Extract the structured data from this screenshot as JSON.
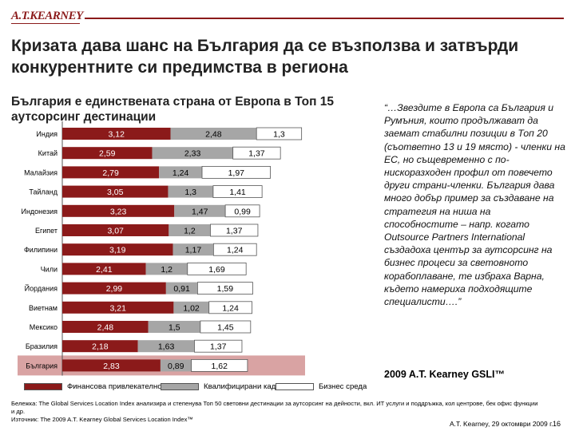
{
  "header": {
    "logo": "A.T.KEARNEY",
    "title": "Кризата дава шанс на България да се възползва и затвърди конкурентните си предимства в региона",
    "subtitle": "България е единствената страна от Европа в Топ 15 аутсорсинг дестинации"
  },
  "quote": {
    "text": "“…Звездите в Европа са България и Румъния, които продължават да заемат стабилни позиции в Топ 20 (съответно 13 и 19 място) - членки на ЕС, но същевременно с по-нискоразходен профил от повечето други страни-членки. България дава много добър пример за създаване на стратегия на ниша на способностите – напр. когато Outsource Partners International създадоха център за аутсорсинг на бизнес процеси за световното корабоплаване, те избраха Варна, където намериха подходящите специалисти….”",
    "source": "2009 A.T. Kearney GSLI™"
  },
  "chart_data": {
    "type": "bar",
    "stacked": true,
    "orientation": "horizontal",
    "categories": [
      "Индия",
      "Китай",
      "Малайзия",
      "Тайланд",
      "Индонезия",
      "Египет",
      "Филипини",
      "Чили",
      "Йордания",
      "Виетнам",
      "Мексико",
      "Бразилия",
      "България"
    ],
    "series": [
      {
        "name": "Финансова привлекателност",
        "color": "#8b1a1a",
        "values": [
          3.12,
          2.59,
          2.79,
          3.05,
          3.23,
          3.07,
          3.19,
          2.41,
          2.99,
          3.21,
          2.48,
          2.18,
          2.83
        ]
      },
      {
        "name": "Квалифицирани кадри",
        "color": "#a6a6a6",
        "values": [
          2.48,
          2.33,
          1.24,
          1.3,
          1.47,
          1.2,
          1.17,
          1.2,
          0.91,
          1.02,
          1.5,
          1.63,
          0.89
        ]
      },
      {
        "name": "Бизнес среда",
        "color": "#ffffff",
        "values": [
          1.3,
          1.37,
          1.97,
          1.41,
          0.99,
          1.37,
          1.24,
          1.69,
          1.59,
          1.24,
          1.45,
          1.37,
          1.62
        ]
      }
    ],
    "labels": [
      [
        "3,12",
        "2,48",
        "1,3"
      ],
      [
        "2,59",
        "2,33",
        "1,37"
      ],
      [
        "2,79",
        "1,24",
        "1,97"
      ],
      [
        "3,05",
        "1,3",
        "1,41"
      ],
      [
        "3,23",
        "1,47",
        "0,99"
      ],
      [
        "3,07",
        "1,2",
        "1,37"
      ],
      [
        "3,19",
        "1,17",
        "1,24"
      ],
      [
        "2,41",
        "1,2",
        "1,69"
      ],
      [
        "2,99",
        "0,91",
        "1,59"
      ],
      [
        "3,21",
        "1,02",
        "1,24"
      ],
      [
        "2,48",
        "1,5",
        "1,45"
      ],
      [
        "2,18",
        "1,63",
        "1,37"
      ],
      [
        "2,83",
        "0,89",
        "1,62"
      ]
    ],
    "highlight": "България",
    "highlight_color": "#d9a3a3",
    "xlim": [
      0,
      7
    ]
  },
  "footnote": {
    "line1": "Бележка: The Global Services Location Index анализира и степенува Топ 50 световни дестинации за аутсорсинг на дейности, вкл. ИТ услуги и поддръжка, кол центрове, бек офис функции и др.",
    "line2": "Източник: The 2009 A.T. Kearney Global Services Location Index™"
  },
  "footer": {
    "date": "A.T. Kearney, 29 октомври 2009 г.",
    "page": "16"
  }
}
